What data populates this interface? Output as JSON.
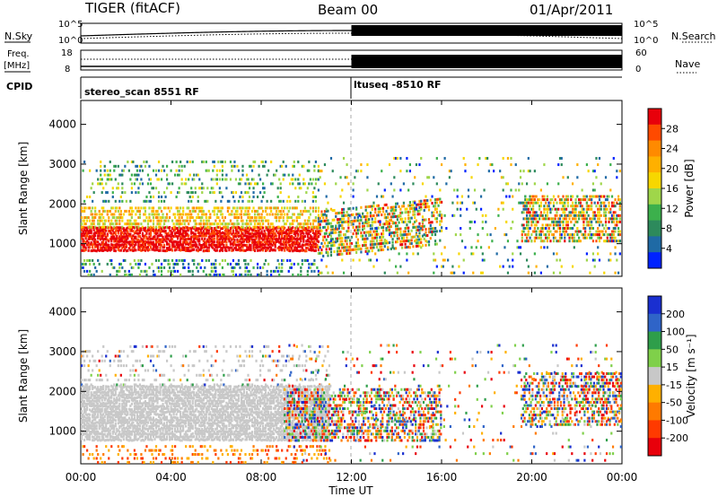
{
  "header": {
    "title": "TIGER (fitACF)",
    "beam": "Beam 00",
    "date": "01/Apr/2011"
  },
  "left_labels": {
    "nsky": "N.Sky",
    "freq": "Freq.",
    "freq_unit": "[MHz]",
    "cpid": "CPID"
  },
  "right_labels": {
    "nsearch": "N.Search",
    "nave": "Nave"
  },
  "cpid_panel": {
    "segments": [
      {
        "label": "stereo_scan 8551 RF",
        "start": "00:00",
        "end": "12:00"
      },
      {
        "label": "ltuseq -8510 RF",
        "start": "12:00",
        "end": "24:00"
      }
    ]
  },
  "noise_panel": {
    "left_ticks": [
      "10^5",
      "10^0"
    ],
    "right_ticks": [
      "10^5",
      "10^0"
    ]
  },
  "freq_panel": {
    "left_ticks": [
      "18",
      "8"
    ],
    "right_ticks": [
      "60",
      "0"
    ]
  },
  "chart_data": [
    {
      "type": "heatmap",
      "name": "power",
      "ylabel": "Slant Range [km]",
      "yticks": [
        "4000",
        "3000",
        "2000",
        "1000"
      ],
      "ylim": [
        180,
        4600
      ],
      "xlim": [
        0,
        24
      ],
      "colorbar": {
        "label": "Power [dB]",
        "ticks": [
          "28",
          "24",
          "20",
          "16",
          "12",
          "8",
          "4"
        ],
        "colors": [
          "#e8000b",
          "#ff4a00",
          "#ff8a00",
          "#ffb000",
          "#f7d700",
          "#9fd64a",
          "#3cb04c",
          "#2d8a5c",
          "#1f6aa5",
          "#0022ff"
        ]
      }
    },
    {
      "type": "heatmap",
      "name": "velocity",
      "ylabel": "Slant Range [km]",
      "yticks": [
        "4000",
        "3000",
        "2000",
        "1000"
      ],
      "ylim": [
        180,
        4600
      ],
      "xlim": [
        0,
        24
      ],
      "colorbar": {
        "label": "Velocity [m s⁻¹]",
        "ticks": [
          "200",
          "100",
          "50",
          "15",
          "-15",
          "-50",
          "-100",
          "-200"
        ],
        "colors": [
          "#1a2fd0",
          "#2f64c8",
          "#2e9e4a",
          "#7fd04a",
          "#c8c8c8",
          "#ffb000",
          "#ff7a00",
          "#ff3a00",
          "#e8000b"
        ]
      }
    }
  ],
  "xaxis": {
    "ticks": [
      "00:00",
      "04:00",
      "08:00",
      "12:00",
      "16:00",
      "20:00",
      "00:00"
    ],
    "label": "Time UT"
  }
}
